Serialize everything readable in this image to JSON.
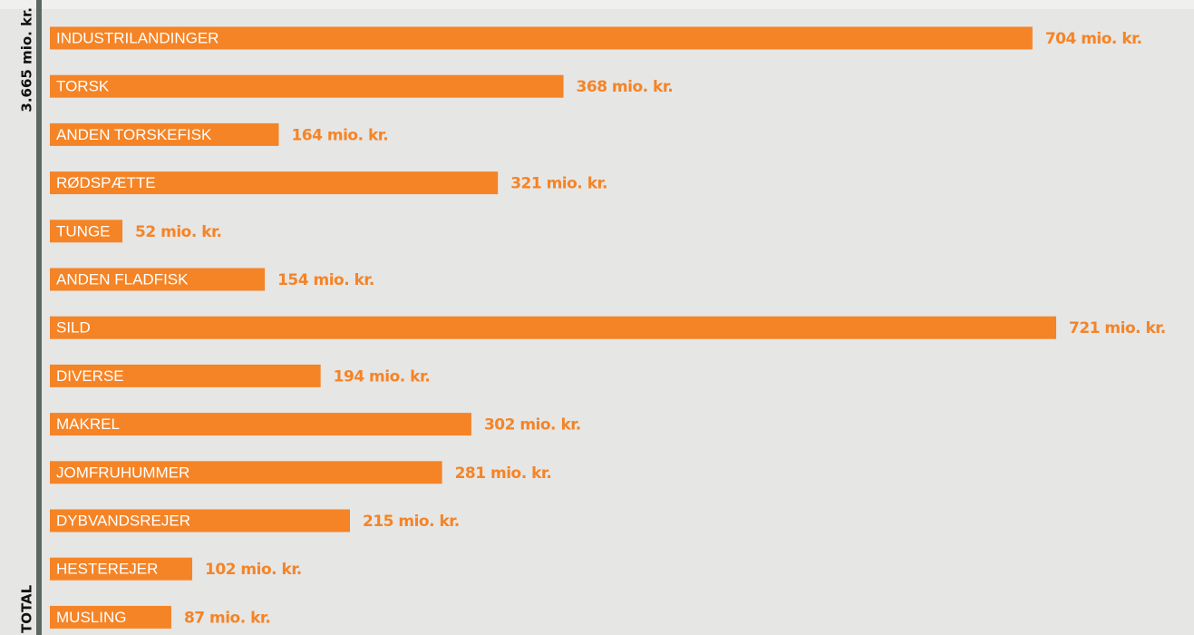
{
  "chart_data": {
    "type": "bar",
    "orientation": "horizontal",
    "total_label": "TOTAL",
    "total_value": "3.665 mio. kr.",
    "categories": [
      "INDUSTRILANDINGER",
      "TORSK",
      "ANDEN TORSKEFISK",
      "RØDSPÆTTE",
      "TUNGE",
      "ANDEN FLADFISK",
      "SILD",
      "DIVERSE",
      "MAKREL",
      "JOMFRUHUMMER",
      "DYBVANDSREJER",
      "HESTEREJER",
      "MUSLING"
    ],
    "values": [
      704,
      368,
      164,
      321,
      52,
      154,
      721,
      194,
      302,
      281,
      215,
      102,
      87
    ],
    "value_labels": [
      "704 mio. kr.",
      "368 mio. kr.",
      "164 mio. kr.",
      "321 mio. kr.",
      "52 mio. kr.",
      "154 mio. kr.",
      "721 mio. kr.",
      "194 mio. kr.",
      "302 mio. kr.",
      "281 mio. kr.",
      "215 mio. kr.",
      "102 mio. kr.",
      "87 mio. kr."
    ],
    "color": "#f58426"
  }
}
